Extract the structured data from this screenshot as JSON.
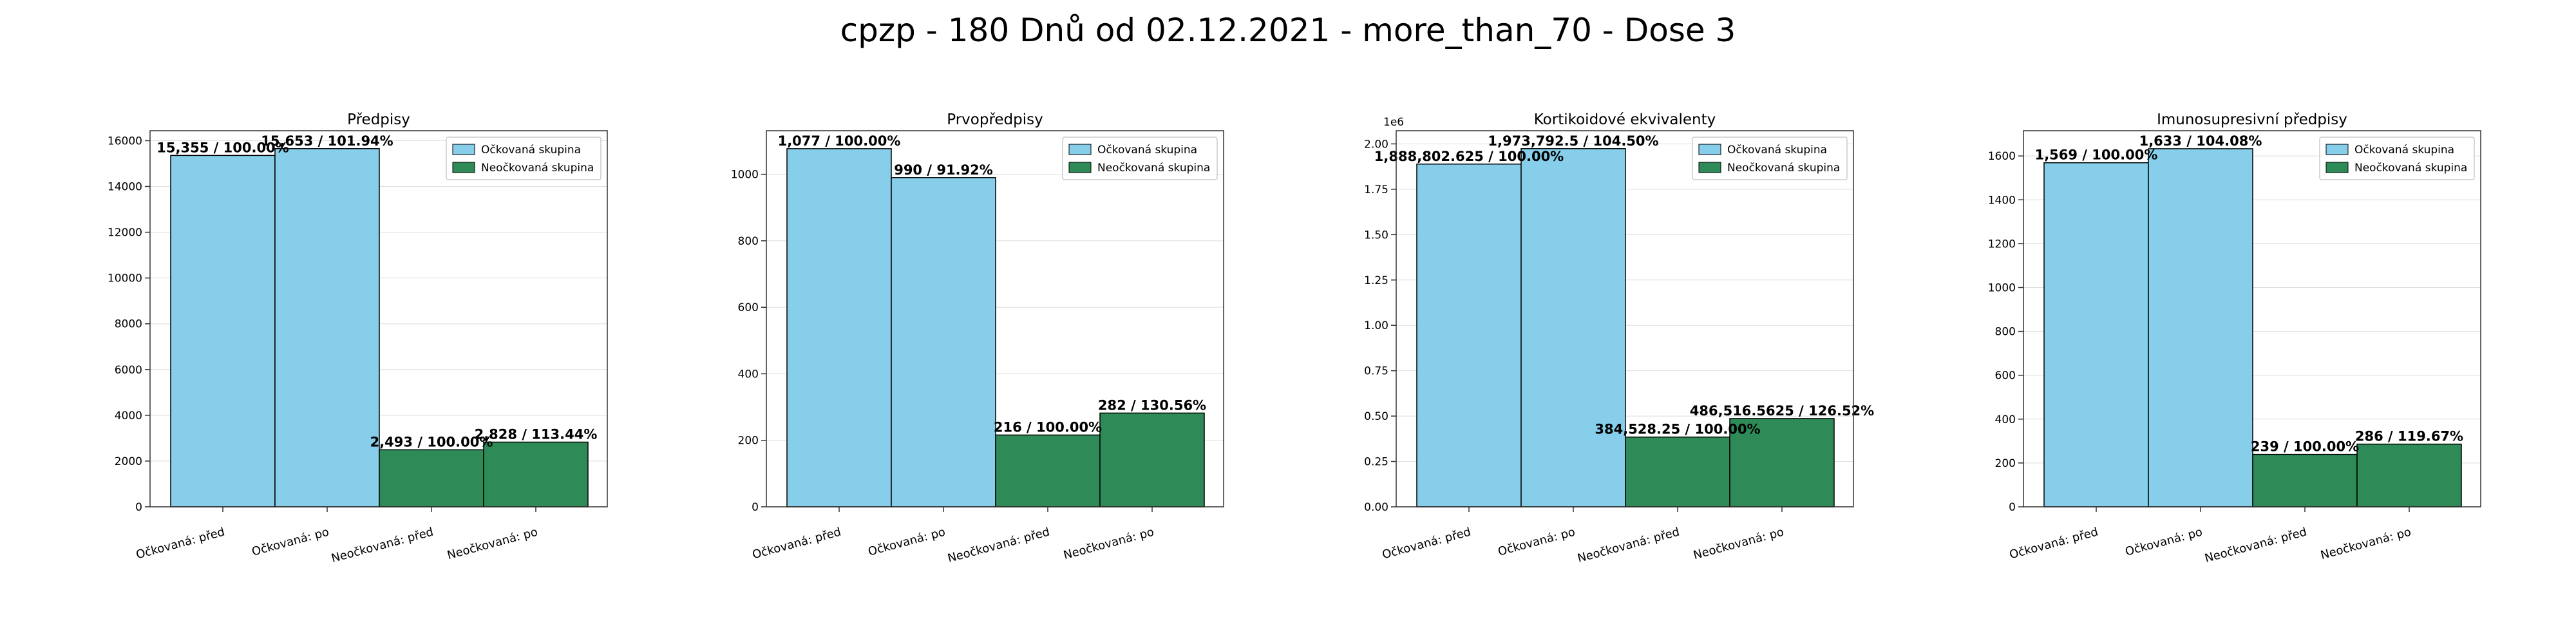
{
  "figure_title": "cpzp - 180 Dnů od 02.12.2021 - more_than_70 - Dose 3",
  "colors": {
    "vaccinated": "#87ceeb",
    "unvaccinated": "#2e8b57",
    "edge": "#000000",
    "axis": "#333333",
    "grid": "#dddddd"
  },
  "legend": {
    "vaccinated": "Očkovaná skupina",
    "unvaccinated": "Neočkovaná skupina"
  },
  "chart_data": [
    {
      "type": "bar",
      "title": "Předpisy",
      "categories": [
        "Očkovaná: před",
        "Očkovaná: po",
        "Neočkovaná: před",
        "Neočkovaná: po"
      ],
      "values": [
        15355,
        15653,
        2493,
        2828
      ],
      "labels": [
        "15,355 / 100.00%",
        "15,653 / 101.94%",
        "2,493 / 100.00%",
        "2,828 / 113.44%"
      ],
      "groups": [
        "vaccinated",
        "vaccinated",
        "unvaccinated",
        "unvaccinated"
      ],
      "ylim": [
        0,
        16435
      ],
      "yticks": [
        0,
        2000,
        4000,
        6000,
        8000,
        10000,
        12000,
        14000,
        16000
      ],
      "ytick_labels": [
        "0",
        "2000",
        "4000",
        "6000",
        "8000",
        "10000",
        "12000",
        "14000",
        "16000"
      ],
      "offset_text": "",
      "legend_position": "top-right"
    },
    {
      "type": "bar",
      "title": "Prvopředpisy",
      "categories": [
        "Očkovaná: před",
        "Očkovaná: po",
        "Neočkovaná: před",
        "Neočkovaná: po"
      ],
      "values": [
        1077,
        990,
        216,
        282
      ],
      "labels": [
        "1,077 / 100.00%",
        "990 / 91.92%",
        "216 / 100.00%",
        "282 / 130.56%"
      ],
      "groups": [
        "vaccinated",
        "vaccinated",
        "unvaccinated",
        "unvaccinated"
      ],
      "ylim": [
        0,
        1131
      ],
      "yticks": [
        0,
        200,
        400,
        600,
        800,
        1000
      ],
      "ytick_labels": [
        "0",
        "200",
        "400",
        "600",
        "800",
        "1000"
      ],
      "offset_text": "",
      "legend_position": "top-right"
    },
    {
      "type": "bar",
      "title": "Kortikoidové ekvivalenty",
      "categories": [
        "Očkovaná: před",
        "Očkovaná: po",
        "Neočkovaná: před",
        "Neočkovaná: po"
      ],
      "values": [
        1888802.625,
        1973792.5,
        384528.25,
        486516.5625
      ],
      "labels": [
        "1,888,802.625 / 100.00%",
        "1,973,792.5 / 104.50%",
        "384,528.25 / 100.00%",
        "486,516.5625 / 126.52%"
      ],
      "groups": [
        "vaccinated",
        "vaccinated",
        "unvaccinated",
        "unvaccinated"
      ],
      "ylim": [
        0,
        2072482
      ],
      "yticks": [
        0,
        250000,
        500000,
        750000,
        1000000,
        1250000,
        1500000,
        1750000,
        2000000
      ],
      "ytick_labels": [
        "0.00",
        "0.25",
        "0.50",
        "0.75",
        "1.00",
        "1.25",
        "1.50",
        "1.75",
        "2.00"
      ],
      "offset_text": "1e6",
      "legend_position": "top-right"
    },
    {
      "type": "bar",
      "title": "Imunosupresivní předpisy",
      "categories": [
        "Očkovaná: před",
        "Očkovaná: po",
        "Neočkovaná: před",
        "Neočkovaná: po"
      ],
      "values": [
        1569,
        1633,
        239,
        286
      ],
      "labels": [
        "1,569 / 100.00%",
        "1,633 / 104.08%",
        "239 / 100.00%",
        "286 / 119.67%"
      ],
      "groups": [
        "vaccinated",
        "vaccinated",
        "unvaccinated",
        "unvaccinated"
      ],
      "ylim": [
        0,
        1715
      ],
      "yticks": [
        0,
        200,
        400,
        600,
        800,
        1000,
        1200,
        1400,
        1600
      ],
      "ytick_labels": [
        "0",
        "200",
        "400",
        "600",
        "800",
        "1000",
        "1200",
        "1400",
        "1600"
      ],
      "offset_text": "",
      "legend_position": "top-right"
    }
  ]
}
